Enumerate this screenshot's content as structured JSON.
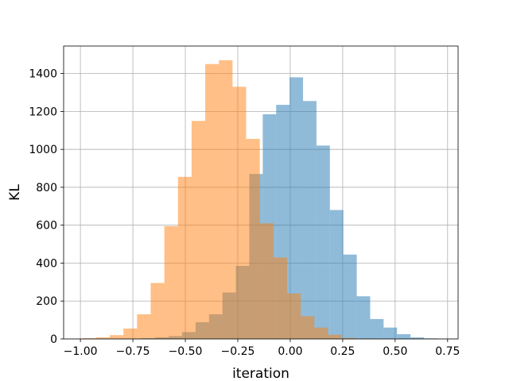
{
  "chart_data": {
    "type": "histogram",
    "title": "",
    "xlabel": "iteration",
    "ylabel": "KL",
    "xlim": [
      -1.08,
      0.8
    ],
    "ylim": [
      0,
      1545
    ],
    "grid": true,
    "xticks": [
      -1.0,
      -0.75,
      -0.5,
      -0.25,
      0.0,
      0.25,
      0.5,
      0.75
    ],
    "xtick_labels": [
      "−1.00",
      "−0.75",
      "−0.50",
      "−0.25",
      "0.00",
      "0.25",
      "0.50",
      "0.75"
    ],
    "yticks": [
      0,
      200,
      400,
      600,
      800,
      1000,
      1200,
      1400
    ],
    "ytick_labels": [
      "0",
      "200",
      "400",
      "600",
      "800",
      "1000",
      "1200",
      "1400"
    ],
    "alpha": 0.5,
    "series": [
      {
        "color": "#1f77b4",
        "bin_edges": [
          -0.835,
          -0.771,
          -0.707,
          -0.643,
          -0.579,
          -0.515,
          -0.451,
          -0.387,
          -0.323,
          -0.259,
          -0.195,
          -0.131,
          -0.067,
          -0.003,
          0.061,
          0.125,
          0.189,
          0.253,
          0.317,
          0.381,
          0.445,
          0.509,
          0.573,
          0.637,
          0.701
        ],
        "counts": [
          1,
          2,
          4,
          8,
          15,
          36,
          88,
          130,
          245,
          385,
          870,
          1185,
          1235,
          1380,
          1255,
          1020,
          680,
          445,
          225,
          105,
          60,
          25,
          8,
          3
        ]
      },
      {
        "color": "#ff7f0e",
        "bin_edges": [
          -0.99,
          -0.925,
          -0.86,
          -0.795,
          -0.73,
          -0.665,
          -0.6,
          -0.535,
          -0.47,
          -0.405,
          -0.34,
          -0.275,
          -0.21,
          -0.145,
          -0.08,
          -0.015,
          0.05,
          0.115,
          0.18,
          0.245,
          0.31,
          0.375
        ],
        "counts": [
          4,
          8,
          20,
          55,
          130,
          295,
          595,
          855,
          1150,
          1450,
          1470,
          1330,
          1055,
          610,
          430,
          240,
          120,
          60,
          22,
          5,
          2
        ]
      }
    ]
  }
}
